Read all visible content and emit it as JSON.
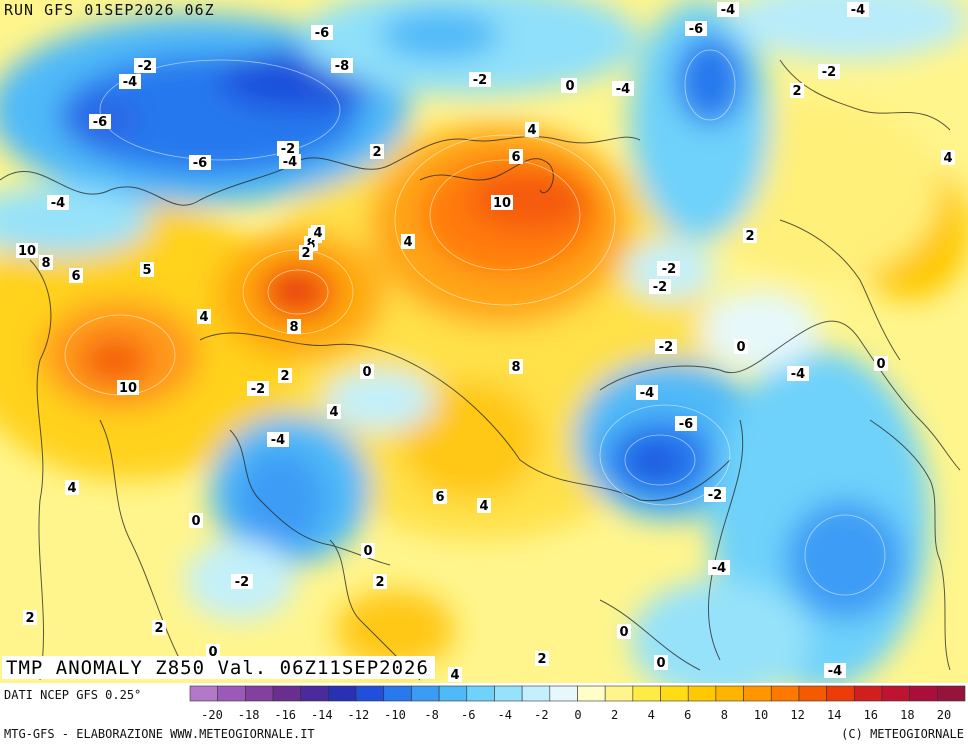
{
  "header": {
    "run_label": "RUN GFS 01SEP2026 06Z"
  },
  "map": {
    "variable_label": "TMP ANOMALY Z850 Val. 06Z11SEP2026",
    "contour_labels": [
      "-6",
      "-2",
      "-4",
      "-8",
      "-6",
      "-6",
      "-4",
      "-2",
      "-4",
      "-2",
      "-6",
      "-4",
      "0",
      "2",
      "4",
      "6",
      "8",
      "4",
      "5",
      "2",
      "8",
      "6",
      "10",
      "10",
      "10",
      "4",
      "6",
      "8",
      "10",
      "-2",
      "0",
      "2",
      "4",
      "-2",
      "0",
      "8",
      "-2",
      "-4",
      "0",
      "-4",
      "-6",
      "-2",
      "-4",
      "2",
      "4",
      "0",
      "6",
      "4",
      "0",
      "-2",
      "2",
      "4",
      "2",
      "0",
      "0",
      "2",
      "-4",
      "0",
      "4",
      "0",
      "-2",
      "-4",
      "-2",
      "-4",
      "0",
      "-4",
      "2",
      "4",
      "2",
      "4"
    ]
  },
  "legend": {
    "source_text": "DATI NCEP GFS 0.25°",
    "colors": [
      "#b478c8",
      "#9b5ab9",
      "#82409f",
      "#6a2e91",
      "#4b2a9c",
      "#2830b4",
      "#1e50dc",
      "#2878ee",
      "#3c9cf5",
      "#50b9f8",
      "#6ed2fa",
      "#96e2fa",
      "#c3f0fa",
      "#e6f8fa",
      "#fffdc8",
      "#fff58c",
      "#ffeb46",
      "#ffdc14",
      "#ffc800",
      "#ffb400",
      "#ff9600",
      "#ff7800",
      "#f55a00",
      "#eb3c0a",
      "#d21e1e",
      "#be1432",
      "#aa0f3c",
      "#96143c"
    ],
    "tick_labels": [
      "-20",
      "-18",
      "-16",
      "-14",
      "-12",
      "-10",
      "-8",
      "-6",
      "-4",
      "-2",
      "0",
      "2",
      "4",
      "6",
      "8",
      "10",
      "12",
      "14",
      "16",
      "18",
      "20"
    ]
  },
  "footer": {
    "left_text": "MTG-GFS - ELABORAZIONE WWW.METEOGIORNALE.IT",
    "right_text": "(C) METEOGIORNALE"
  }
}
